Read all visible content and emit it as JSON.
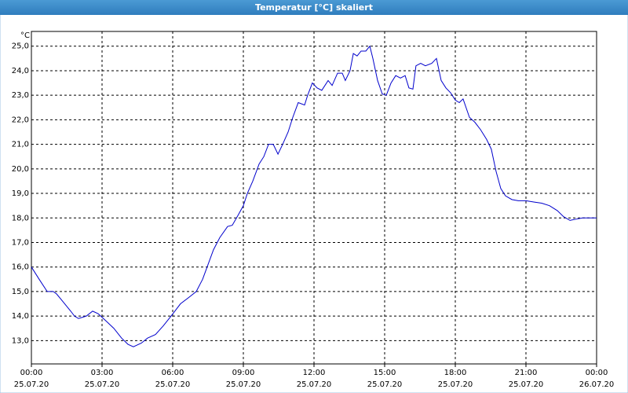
{
  "chart_data": {
    "type": "line",
    "title": "Temperatur [°C] skaliert",
    "y_label": "°C",
    "x": [
      0,
      0.33,
      0.67,
      0.93,
      1.07,
      1.33,
      1.67,
      1.83,
      2.0,
      2.33,
      2.6,
      2.83,
      3.17,
      3.5,
      3.83,
      4.1,
      4.33,
      4.67,
      4.93,
      5.27,
      5.6,
      5.93,
      6.33,
      6.67,
      7.0,
      7.27,
      7.5,
      7.73,
      8.0,
      8.33,
      8.53,
      8.77,
      9.0,
      9.17,
      9.4,
      9.67,
      9.87,
      10.07,
      10.27,
      10.47,
      10.67,
      10.9,
      11.1,
      11.33,
      11.6,
      11.73,
      11.93,
      12.13,
      12.33,
      12.6,
      12.77,
      13.0,
      13.2,
      13.33,
      13.53,
      13.67,
      13.83,
      14.0,
      14.2,
      14.37,
      14.5,
      14.7,
      14.9,
      15.07,
      15.27,
      15.47,
      15.67,
      15.87,
      16.03,
      16.2,
      16.33,
      16.53,
      16.73,
      17.0,
      17.2,
      17.4,
      17.6,
      17.8,
      18.0,
      18.17,
      18.33,
      18.6,
      18.83,
      19.07,
      19.33,
      19.53,
      19.73,
      19.93,
      20.13,
      20.4,
      20.67,
      21.0,
      21.33,
      21.67,
      22.0,
      22.33,
      22.6,
      22.87,
      23.13,
      23.4,
      23.67,
      24.0
    ],
    "series": [
      {
        "color": "#0000cc",
        "values": [
          16.0,
          15.5,
          15.0,
          15.0,
          14.9,
          14.6,
          14.2,
          14.0,
          13.9,
          14.0,
          14.2,
          14.1,
          13.8,
          13.5,
          13.1,
          12.85,
          12.75,
          12.9,
          13.1,
          13.25,
          13.6,
          14.0,
          14.5,
          14.75,
          15.0,
          15.5,
          16.1,
          16.7,
          17.2,
          17.65,
          17.7,
          18.1,
          18.5,
          19.0,
          19.5,
          20.2,
          20.5,
          21.0,
          21.0,
          20.6,
          21.0,
          21.5,
          22.1,
          22.7,
          22.6,
          23.0,
          23.5,
          23.3,
          23.2,
          23.6,
          23.4,
          23.9,
          23.9,
          23.6,
          24.0,
          24.7,
          24.6,
          24.8,
          24.8,
          25.0,
          24.5,
          23.6,
          23.05,
          23.0,
          23.5,
          23.8,
          23.7,
          23.8,
          23.3,
          23.25,
          24.2,
          24.3,
          24.2,
          24.3,
          24.5,
          23.6,
          23.3,
          23.1,
          22.8,
          22.7,
          22.85,
          22.1,
          21.9,
          21.6,
          21.2,
          20.8,
          19.9,
          19.2,
          18.9,
          18.75,
          18.7,
          18.7,
          18.65,
          18.6,
          18.5,
          18.3,
          18.05,
          17.9,
          17.95,
          18.0,
          18.0,
          18.0
        ]
      }
    ],
    "xlim": [
      0,
      24
    ],
    "xticks": [
      {
        "value": 0,
        "label": "00:00",
        "date": "25.07.20"
      },
      {
        "value": 3,
        "label": "03:00",
        "date": "25.07.20"
      },
      {
        "value": 6,
        "label": "06:00",
        "date": "25.07.20"
      },
      {
        "value": 9,
        "label": "09:00",
        "date": "25.07.20"
      },
      {
        "value": 12,
        "label": "12:00",
        "date": "25.07.20"
      },
      {
        "value": 15,
        "label": "15:00",
        "date": "25.07.20"
      },
      {
        "value": 18,
        "label": "18:00",
        "date": "25.07.20"
      },
      {
        "value": 21,
        "label": "21:00",
        "date": "25.07.20"
      },
      {
        "value": 24,
        "label": "00:00",
        "date": "26.07.20"
      }
    ],
    "ylim": [
      12.05,
      25.6
    ],
    "yticks": [
      {
        "value": 13,
        "label": "13,0"
      },
      {
        "value": 14,
        "label": "14,0"
      },
      {
        "value": 15,
        "label": "15,0"
      },
      {
        "value": 16,
        "label": "16,0"
      },
      {
        "value": 17,
        "label": "17,0"
      },
      {
        "value": 18,
        "label": "18,0"
      },
      {
        "value": 19,
        "label": "19,0"
      },
      {
        "value": 20,
        "label": "20,0"
      },
      {
        "value": 21,
        "label": "21,0"
      },
      {
        "value": 22,
        "label": "22,0"
      },
      {
        "value": 23,
        "label": "23,0"
      },
      {
        "value": 24,
        "label": "24,0"
      },
      {
        "value": 25,
        "label": "25,0"
      }
    ],
    "grid": true
  }
}
